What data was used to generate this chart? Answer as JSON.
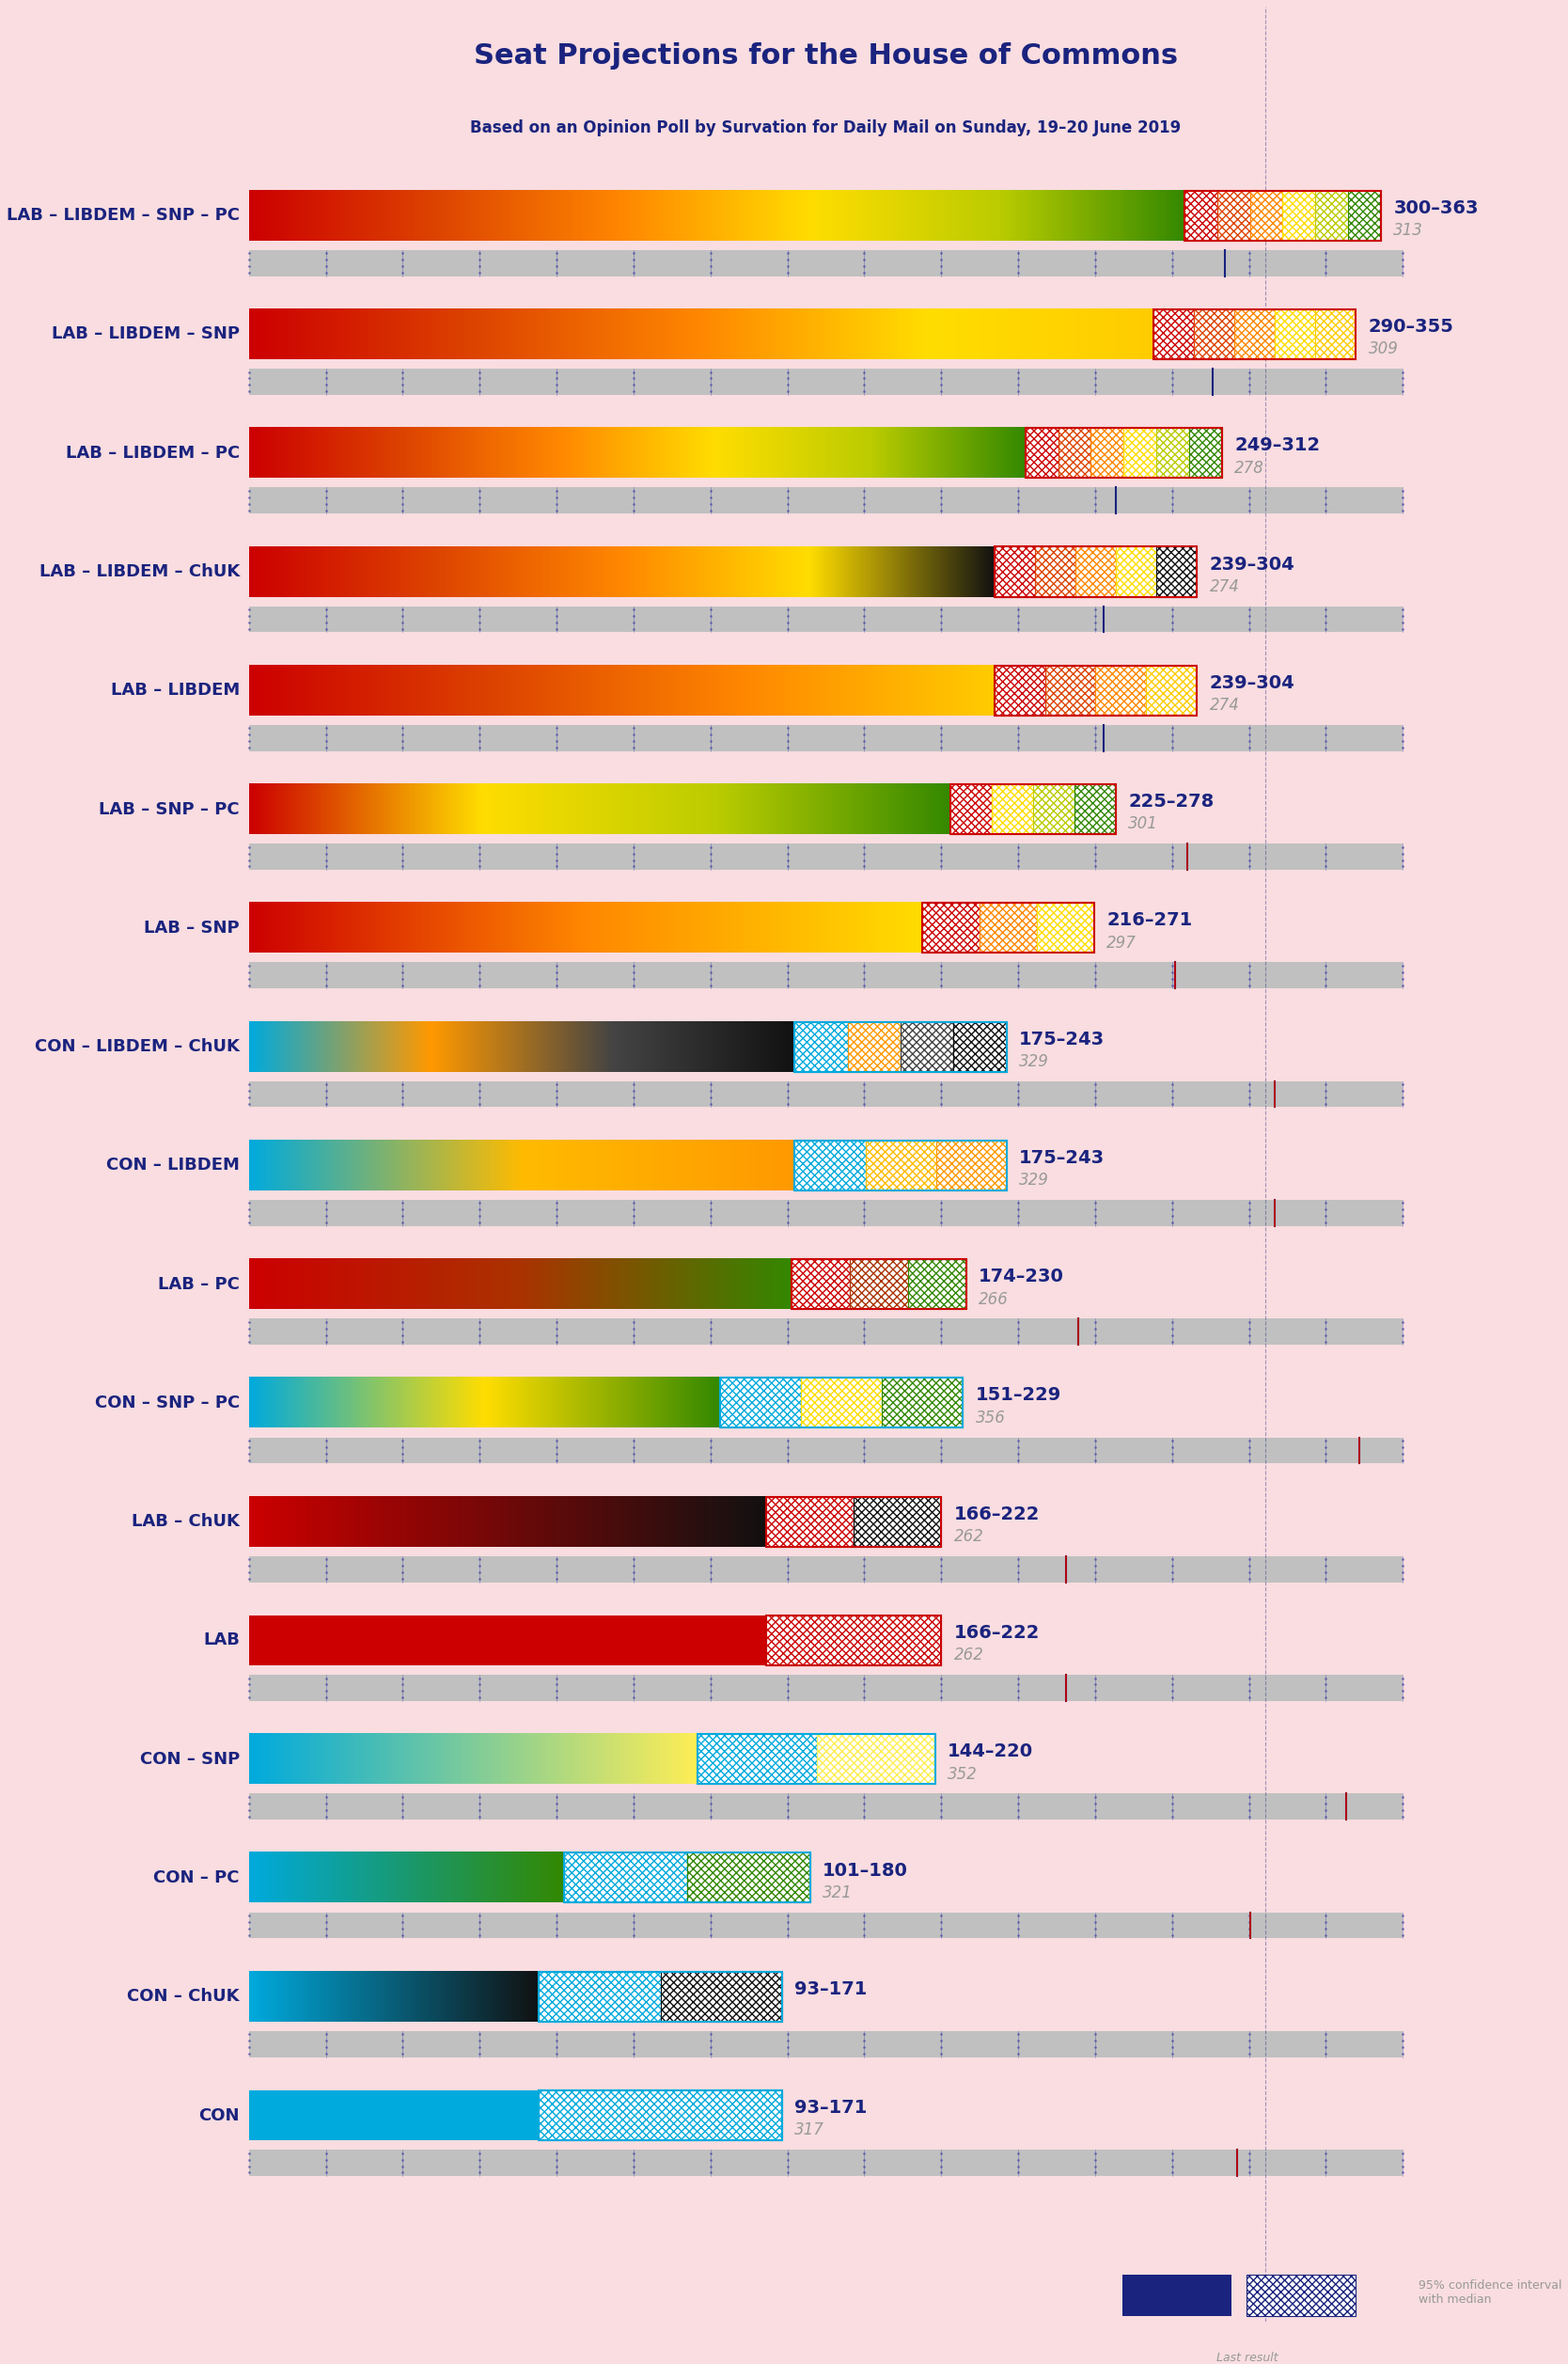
{
  "title": "Seat Projections for the House of Commons",
  "subtitle": "Based on an Opinion Poll by Survation for Daily Mail on Sunday, 19–20 June 2019",
  "bg_color": "#f9dde0",
  "coalitions": [
    {
      "label": "LAB – LIBDEM – SNP – PC",
      "low": 300,
      "high": 363,
      "median": 313,
      "last": 313,
      "colors": [
        "#cc0000",
        "#dd4400",
        "#ff8800",
        "#ffdd00",
        "#bbcc00",
        "#338800"
      ],
      "type": "lab"
    },
    {
      "label": "LAB – LIBDEM – SNP",
      "low": 290,
      "high": 355,
      "median": 309,
      "last": 309,
      "colors": [
        "#cc0000",
        "#dd4400",
        "#ff8800",
        "#ffdd00",
        "#ffcc00"
      ],
      "type": "lab"
    },
    {
      "label": "LAB – LIBDEM – PC",
      "low": 249,
      "high": 312,
      "median": 278,
      "last": 278,
      "colors": [
        "#cc0000",
        "#dd4400",
        "#ff8800",
        "#ffdd00",
        "#bbcc00",
        "#338800"
      ],
      "type": "lab"
    },
    {
      "label": "LAB – LIBDEM – ChUK",
      "low": 239,
      "high": 304,
      "median": 274,
      "last": 274,
      "colors": [
        "#cc0000",
        "#dd4400",
        "#ff8800",
        "#ffdd00",
        "#111111"
      ],
      "type": "lab"
    },
    {
      "label": "LAB – LIBDEM",
      "low": 239,
      "high": 304,
      "median": 274,
      "last": 274,
      "colors": [
        "#cc0000",
        "#dd4400",
        "#ff8800",
        "#ffcc00"
      ],
      "type": "lab"
    },
    {
      "label": "LAB – SNP – PC",
      "low": 225,
      "high": 278,
      "median": 301,
      "last": 301,
      "colors": [
        "#cc0000",
        "#ffdd00",
        "#bbcc00",
        "#338800"
      ],
      "type": "lab"
    },
    {
      "label": "LAB – SNP",
      "low": 216,
      "high": 271,
      "median": 297,
      "last": 297,
      "colors": [
        "#cc0000",
        "#ff8800",
        "#ffdd00"
      ],
      "type": "lab"
    },
    {
      "label": "CON – LIBDEM – ChUK",
      "low": 175,
      "high": 243,
      "median": 329,
      "last": 329,
      "colors": [
        "#00aadd",
        "#ff9900",
        "#444444",
        "#111111"
      ],
      "type": "con"
    },
    {
      "label": "CON – LIBDEM",
      "low": 175,
      "high": 243,
      "median": 329,
      "last": 329,
      "colors": [
        "#00aadd",
        "#ffbb00",
        "#ff9900"
      ],
      "type": "con"
    },
    {
      "label": "LAB – PC",
      "low": 174,
      "high": 230,
      "median": 266,
      "last": 266,
      "colors": [
        "#cc0000",
        "#aa3300",
        "#338800"
      ],
      "type": "lab"
    },
    {
      "label": "CON – SNP – PC",
      "low": 151,
      "high": 229,
      "median": 356,
      "last": 356,
      "colors": [
        "#00aadd",
        "#ffdd00",
        "#338800"
      ],
      "type": "con"
    },
    {
      "label": "LAB – ChUK",
      "low": 166,
      "high": 222,
      "median": 262,
      "last": 262,
      "colors": [
        "#cc0000",
        "#111111"
      ],
      "type": "lab"
    },
    {
      "label": "LAB",
      "low": 166,
      "high": 222,
      "median": 262,
      "last": 262,
      "colors": [
        "#cc0000"
      ],
      "type": "lab"
    },
    {
      "label": "CON – SNP",
      "low": 144,
      "high": 220,
      "median": 352,
      "last": 352,
      "colors": [
        "#00aadd",
        "#ffee55"
      ],
      "type": "con"
    },
    {
      "label": "CON – PC",
      "low": 101,
      "high": 180,
      "median": 321,
      "last": 321,
      "colors": [
        "#00aadd",
        "#338800"
      ],
      "type": "con"
    },
    {
      "label": "CON – ChUK",
      "low": 93,
      "high": 171,
      "median": null,
      "last": null,
      "colors": [
        "#00aadd",
        "#111111"
      ],
      "type": "con"
    },
    {
      "label": "CON",
      "low": 93,
      "high": 171,
      "median": 317,
      "last": 317,
      "colors": [
        "#00aadd"
      ],
      "type": "con"
    }
  ],
  "x_max": 370,
  "label_color": "#1a237e",
  "range_color": "#1a237e",
  "median_color": "#999999",
  "last_marker_color": "#cc0000",
  "grid_color": "#bbbbbb",
  "dot_color": "#6666aa"
}
